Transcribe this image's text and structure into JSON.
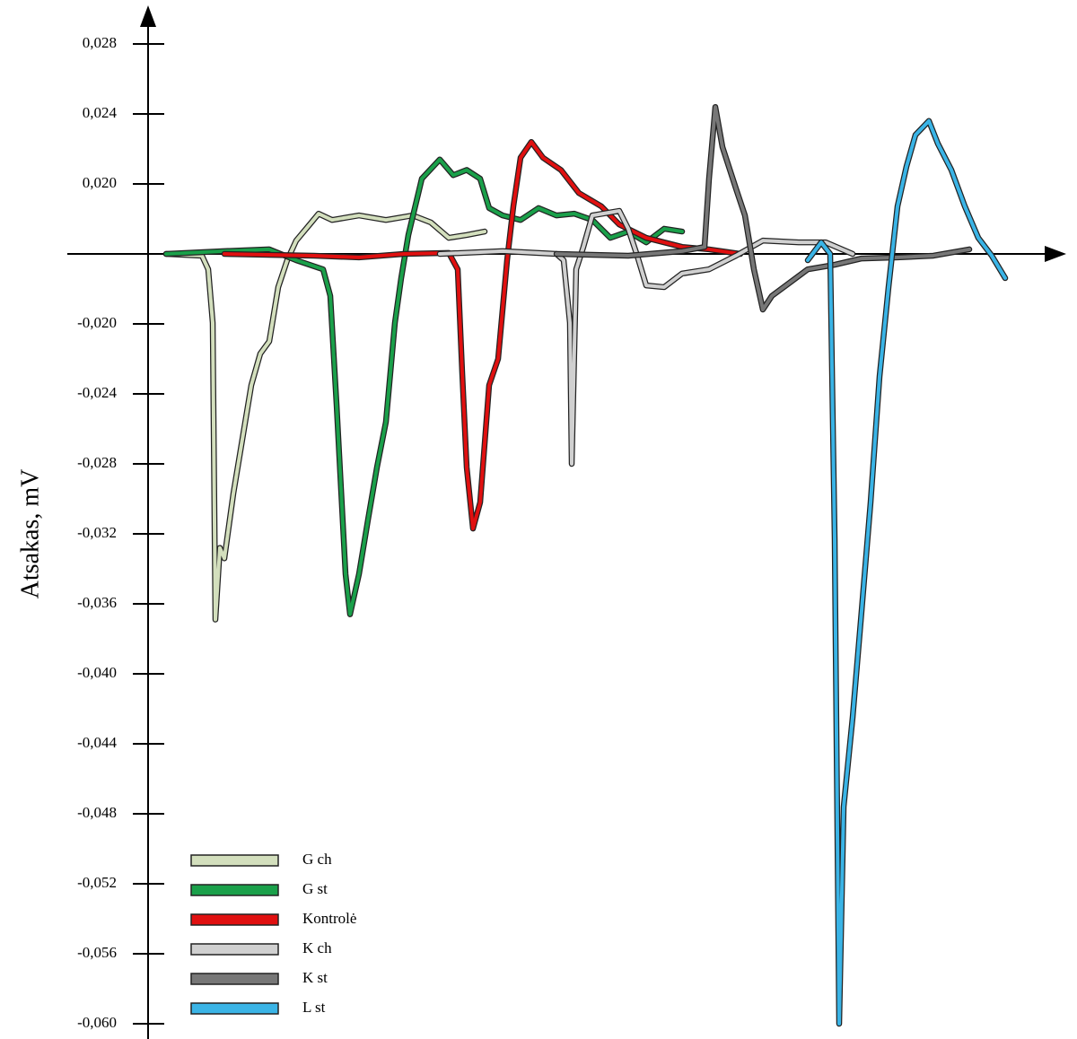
{
  "chart_data": {
    "type": "line",
    "ylabel": "Atsakas, mV",
    "xlim": [
      0,
      100
    ],
    "ylim": [
      -0.06,
      0.028
    ],
    "yticks": [
      {
        "value": 0.028,
        "label": "0,028"
      },
      {
        "value": 0.024,
        "label": "0,024"
      },
      {
        "value": 0.02,
        "label": "0,020"
      },
      {
        "value": -0.02,
        "label": "-0,020"
      },
      {
        "value": -0.024,
        "label": "-0,024"
      },
      {
        "value": -0.028,
        "label": "-0,028"
      },
      {
        "value": -0.032,
        "label": "-0,032"
      },
      {
        "value": -0.036,
        "label": "-0,036"
      },
      {
        "value": -0.04,
        "label": "-0,040"
      },
      {
        "value": -0.044,
        "label": "-0,044"
      },
      {
        "value": -0.048,
        "label": "-0,048"
      },
      {
        "value": -0.052,
        "label": "-0,052"
      },
      {
        "value": -0.056,
        "label": "-0,056"
      },
      {
        "value": -0.06,
        "label": "-0,060"
      }
    ],
    "legend": "lower left",
    "series": [
      {
        "name": "G ch",
        "color": "#d3dfbd",
        "x": [
          2,
          6,
          6.7,
          7.2,
          7.5,
          8,
          8.5,
          9.5,
          10.5,
          11.5,
          12.5,
          13.5,
          14.5,
          15.5,
          16.5,
          18,
          19,
          20.5,
          23.5,
          26.5,
          29.5,
          31.5,
          33.5,
          35.5,
          37.5
        ],
        "values": [
          0,
          -0.0005,
          -0.0044,
          -0.0197,
          -0.0369,
          -0.0328,
          -0.0334,
          -0.0297,
          -0.0266,
          -0.0235,
          -0.0217,
          -0.021,
          -0.0095,
          -0.0018,
          0.0038,
          0.0084,
          0.0115,
          0.0097,
          0.011,
          0.0097,
          0.011,
          0.009,
          0.0046,
          0.0054,
          0.0064
        ]
      },
      {
        "name": "G st",
        "color": "#1aa04a",
        "x": [
          2,
          8.5,
          13.5,
          16.5,
          19.5,
          20.3,
          21,
          22,
          22.5,
          23.5,
          24.5,
          25.5,
          26.5,
          27.5,
          28.2,
          29,
          30.5,
          32.5,
          34,
          35.5,
          37,
          38,
          39.5,
          41.5,
          43.5,
          45.5,
          47.5,
          49.5,
          51.5,
          53.5,
          55.5,
          57.5,
          59.5
        ],
        "values": [
          0,
          0.0008,
          0.0013,
          -0.0018,
          -0.0044,
          -0.012,
          -0.0246,
          -0.0343,
          -0.0366,
          -0.0343,
          -0.0312,
          -0.0282,
          -0.0256,
          -0.0197,
          -0.0069,
          0.0054,
          0.0203,
          0.0214,
          0.0205,
          0.0208,
          0.0203,
          0.0131,
          0.011,
          0.0097,
          0.0131,
          0.011,
          0.0115,
          0.0097,
          0.0046,
          0.0064,
          0.0033,
          0.0072,
          0.0064
        ]
      },
      {
        "name": "Kontrolė",
        "color": "#e01010",
        "x": [
          8.5,
          18.5,
          23.5,
          28.5,
          33.5,
          34.5,
          35,
          35.5,
          36.2,
          37,
          38,
          39,
          40,
          40.7,
          41.5,
          42.7,
          44,
          46,
          48,
          50.5,
          52.5,
          55.5,
          59.5,
          62.5,
          66
        ],
        "values": [
          0,
          -0.0005,
          -0.001,
          0,
          0.0003,
          -0.0044,
          -0.0228,
          -0.0282,
          -0.0317,
          -0.0302,
          -0.0235,
          -0.022,
          -0.0018,
          0.0136,
          0.0215,
          0.0224,
          0.0215,
          0.0208,
          0.0174,
          0.0136,
          0.0084,
          0.0046,
          0.002,
          0.0013,
          0
        ]
      },
      {
        "name": "K ch",
        "color": "#d0d0d0",
        "x": [
          32.5,
          39.5,
          45.5,
          46.3,
          47,
          47.2,
          47.7,
          48.5,
          49.5,
          52.5,
          53.5,
          54.5,
          55.5,
          57.5,
          59.5,
          62.5,
          65.5,
          68.5,
          72.5,
          75.5,
          78.5
        ],
        "values": [
          0,
          0.0008,
          0,
          -0.0018,
          -0.0197,
          -0.028,
          -0.0044,
          0.002,
          0.011,
          0.0123,
          0.0072,
          -0.0005,
          -0.009,
          -0.0095,
          -0.0056,
          -0.0044,
          -0.0005,
          0.0038,
          0.0033,
          0.0033,
          0
        ]
      },
      {
        "name": "K st",
        "color": "#777777",
        "x": [
          45.5,
          53.5,
          59.5,
          62,
          62.5,
          63.2,
          64,
          65.5,
          66.5,
          67.5,
          68.5,
          69.5,
          71.5,
          73.5,
          76.5,
          79.5,
          83.5,
          87.5,
          91.5
        ],
        "values": [
          0,
          -0.0005,
          0.0008,
          0.002,
          0.0203,
          0.0244,
          0.0221,
          0.0187,
          0.011,
          -0.0044,
          -0.0159,
          -0.012,
          -0.0082,
          -0.0044,
          -0.0031,
          -0.0013,
          -0.001,
          -0.0005,
          0.0013
        ]
      },
      {
        "name": "L st",
        "color": "#3ab4e6",
        "x": [
          73.5,
          75,
          76,
          76.5,
          77,
          77.5,
          78.5,
          79.5,
          80.5,
          81.5,
          82.5,
          83.5,
          84.5,
          85.5,
          87,
          88,
          89.5,
          91,
          92.5,
          94,
          95.5
        ],
        "values": [
          -0.0018,
          0.0033,
          0,
          -0.0323,
          -0.06,
          -0.0476,
          -0.0425,
          -0.0364,
          -0.0302,
          -0.023,
          -0.0095,
          0.0136,
          0.021,
          0.0228,
          0.0236,
          0.0223,
          0.0208,
          0.0136,
          0.0046,
          -0.0005,
          -0.0069
        ]
      }
    ]
  }
}
